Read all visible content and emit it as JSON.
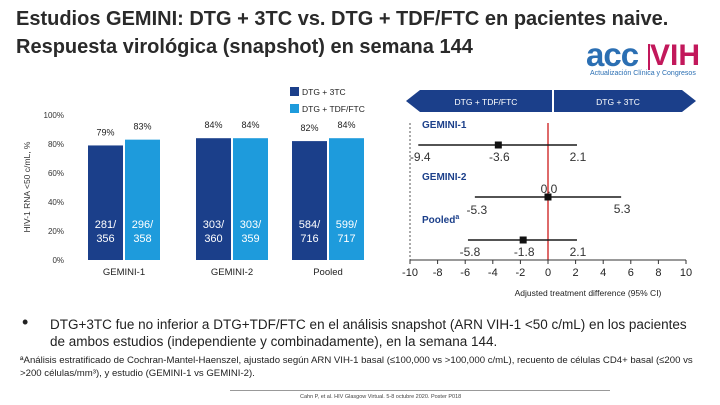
{
  "slide": {
    "title_line1": "Estudios GEMINI: DTG + 3TC vs. DTG + TDF/FTC en pacientes naive.",
    "title_line2": "Respuesta virológica (snapshot) en semana 144",
    "bullet_text": "DTG+3TC fue no inferior a DTG+TDF/FTC en el análisis snapshot (ARN VIH-1 <50 c/mL) en los pacientes de ambos estudios (independiente y combinadamente), en la semana 144.",
    "footnote": "ªAnálisis estratificado de Cochran-Mantel-Haenszel, ajustado según ARN VIH-1 basal (≤100,000 vs >100,000 c/mL), recuento de células CD4+ basal (≤200 vs >200 células/mm³), y estudio (GEMINI-1 vs GEMINI-2).",
    "citation": "Cahn P, et al. HIV Glasgow Virtual. 5-8 octubre 2020. Poster P018",
    "logo": {
      "acc": "acc",
      "vih": "VIH",
      "subtitle": "Actualización Clínica y Congresos"
    },
    "colors": {
      "dtg3tc": "#1b3f8a",
      "tdf": "#1e9bdc",
      "ci_line": "#1a1a1a",
      "zero_line": "#cc1a1a"
    }
  },
  "chart_data": [
    {
      "type": "bar",
      "ylabel": "HIV-1 RNA <50 c/mL, %",
      "yticks": [
        "0%",
        "20%",
        "40%",
        "60%",
        "80%",
        "100%"
      ],
      "ylim": [
        0,
        100
      ],
      "categories": [
        "GEMINI-1",
        "GEMINI-2",
        "Pooled"
      ],
      "series": [
        {
          "name": "DTG + 3TC",
          "values": [
            79,
            84,
            82
          ],
          "value_labels": [
            "79%",
            "84%",
            "82%"
          ],
          "n_labels": [
            "281/ 356",
            "303/ 360",
            "584/ 716"
          ]
        },
        {
          "name": "DTG + TDF/FTC",
          "values": [
            83,
            84,
            84
          ],
          "value_labels": [
            "83%",
            "84%",
            "84%"
          ],
          "n_labels": [
            "296/ 358",
            "303/ 359",
            "599/ 717"
          ]
        }
      ],
      "legend": [
        "DTG + 3TC",
        "DTG + TDF/FTC"
      ],
      "legend_position": "top-right"
    },
    {
      "type": "forest",
      "xlabel": "Adjusted treatment difference (95% CI)",
      "xlim": [
        -10,
        10
      ],
      "xticks": [
        -10,
        -8,
        -6,
        -4,
        -2,
        0,
        2,
        4,
        6,
        8,
        10
      ],
      "header_left": "DTG + TDF/FTC",
      "header_right": "DTG + 3TC",
      "noninferiority_margin": -10,
      "studies": [
        {
          "name": "GEMINI-1",
          "estimate": -3.6,
          "lower": -9.4,
          "upper": 2.1,
          "est_label": "-3.6",
          "lower_label": "-9.4",
          "upper_label": "2.1"
        },
        {
          "name": "GEMINI-2",
          "estimate": 0.0,
          "lower": -5.3,
          "upper": 5.3,
          "est_label": "0.0",
          "lower_label": "-5.3",
          "upper_label": "5.3"
        },
        {
          "name": "Pooled",
          "superscript": "a",
          "estimate": -1.8,
          "lower": -5.8,
          "upper": 2.1,
          "est_label": "-1.8",
          "lower_label": "-5.8",
          "upper_label": "2.1"
        }
      ]
    }
  ]
}
